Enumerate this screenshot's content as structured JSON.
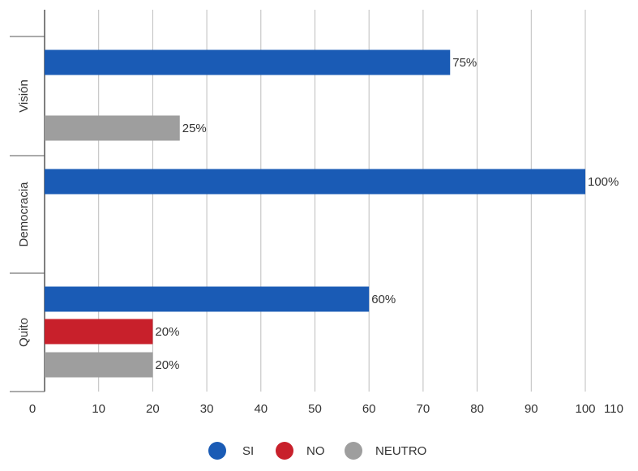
{
  "chart_data": {
    "type": "bar",
    "orientation": "horizontal",
    "categories": [
      "Visión",
      "Democracia",
      "Quito"
    ],
    "series": [
      {
        "name": "SI",
        "color": "#1a5bb5",
        "values": [
          75,
          100,
          60
        ],
        "labels": [
          "75%",
          "100%",
          "60%"
        ]
      },
      {
        "name": "NO",
        "color": "#c8202b",
        "values": [
          0,
          0,
          20
        ],
        "labels": [
          "",
          "",
          "20%"
        ]
      },
      {
        "name": "NEUTRO",
        "color": "#9e9e9e",
        "values": [
          25,
          0,
          20
        ],
        "labels": [
          "25%",
          "",
          "20%"
        ]
      }
    ],
    "xlim": [
      0,
      110
    ],
    "xticks": [
      0,
      10,
      20,
      30,
      40,
      50,
      60,
      70,
      80,
      90,
      100,
      110
    ],
    "xtick_labels": [
      "0",
      "10",
      "20",
      "30",
      "40",
      "50",
      "60",
      "70",
      "80",
      "90",
      "100",
      "110"
    ],
    "grid": true,
    "legend_position": "bottom"
  }
}
